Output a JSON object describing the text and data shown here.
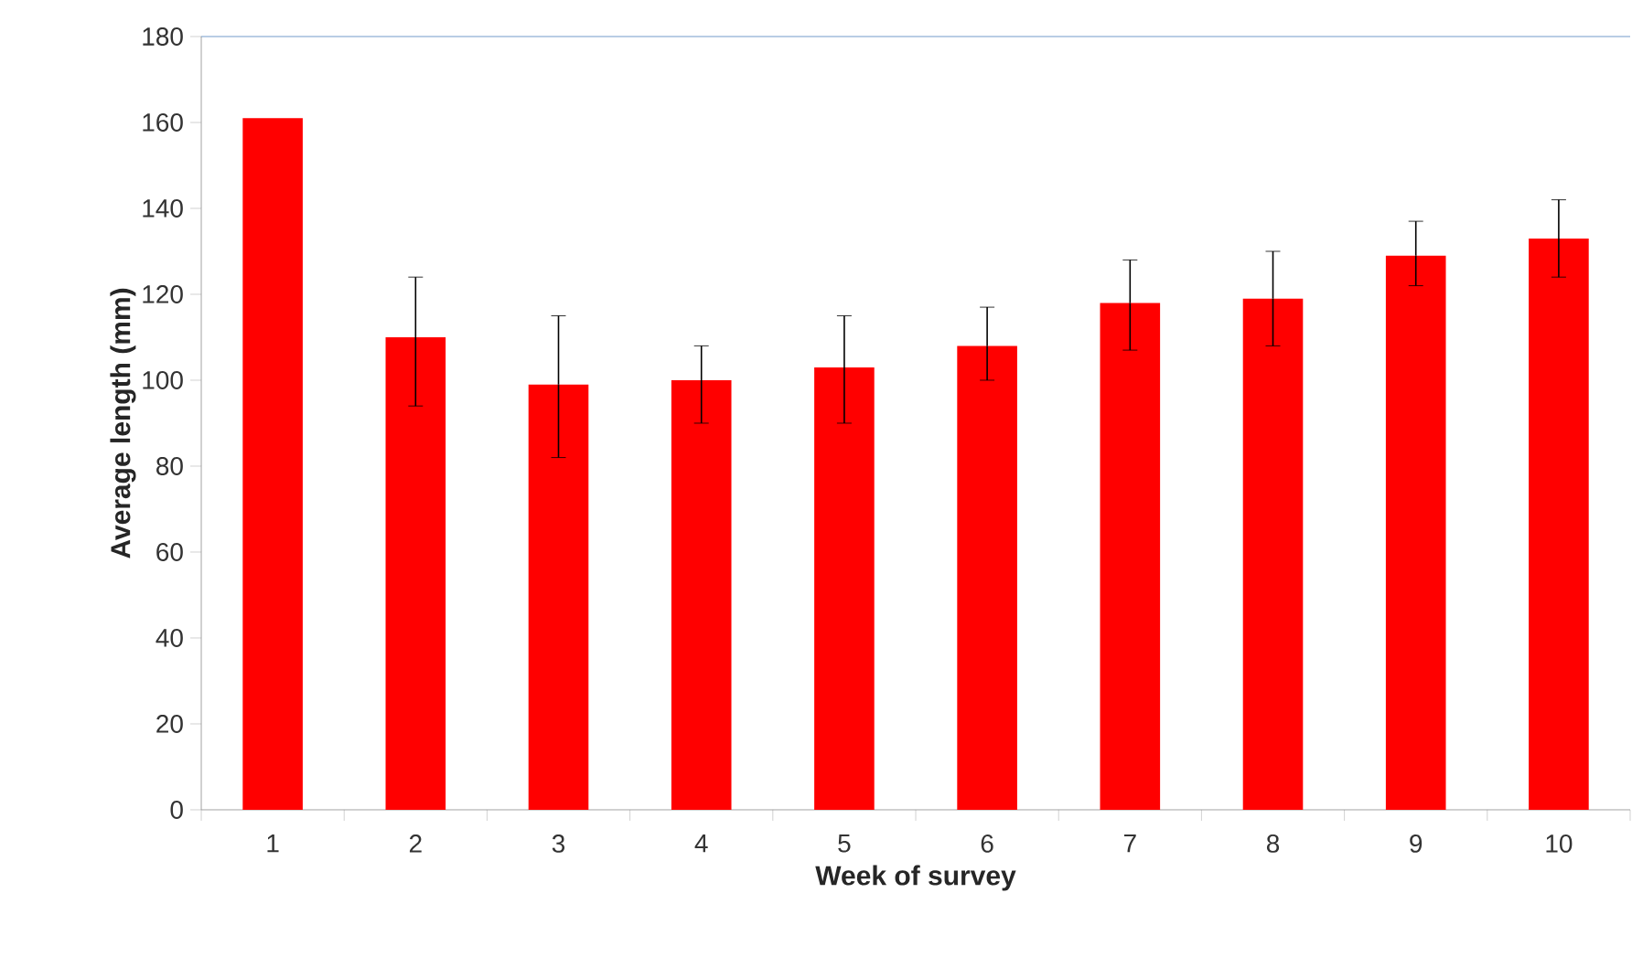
{
  "chart_data": {
    "type": "bar",
    "xlabel": "Week of survey",
    "ylabel": "Average length (mm)",
    "categories": [
      "1",
      "2",
      "3",
      "4",
      "5",
      "6",
      "7",
      "8",
      "9",
      "10"
    ],
    "values": [
      161,
      110,
      99,
      100,
      103,
      108,
      118,
      119,
      129,
      133
    ],
    "errors": [
      null,
      [
        94,
        124
      ],
      [
        82,
        115
      ],
      [
        90,
        108
      ],
      [
        90,
        115
      ],
      [
        100,
        117
      ],
      [
        107,
        128
      ],
      [
        108,
        130
      ],
      [
        122,
        137
      ],
      [
        124,
        142
      ]
    ],
    "color": "#ff0000",
    "ylim": [
      0,
      180
    ],
    "yticks": [
      0,
      20,
      40,
      60,
      80,
      100,
      120,
      140,
      160,
      180
    ]
  }
}
